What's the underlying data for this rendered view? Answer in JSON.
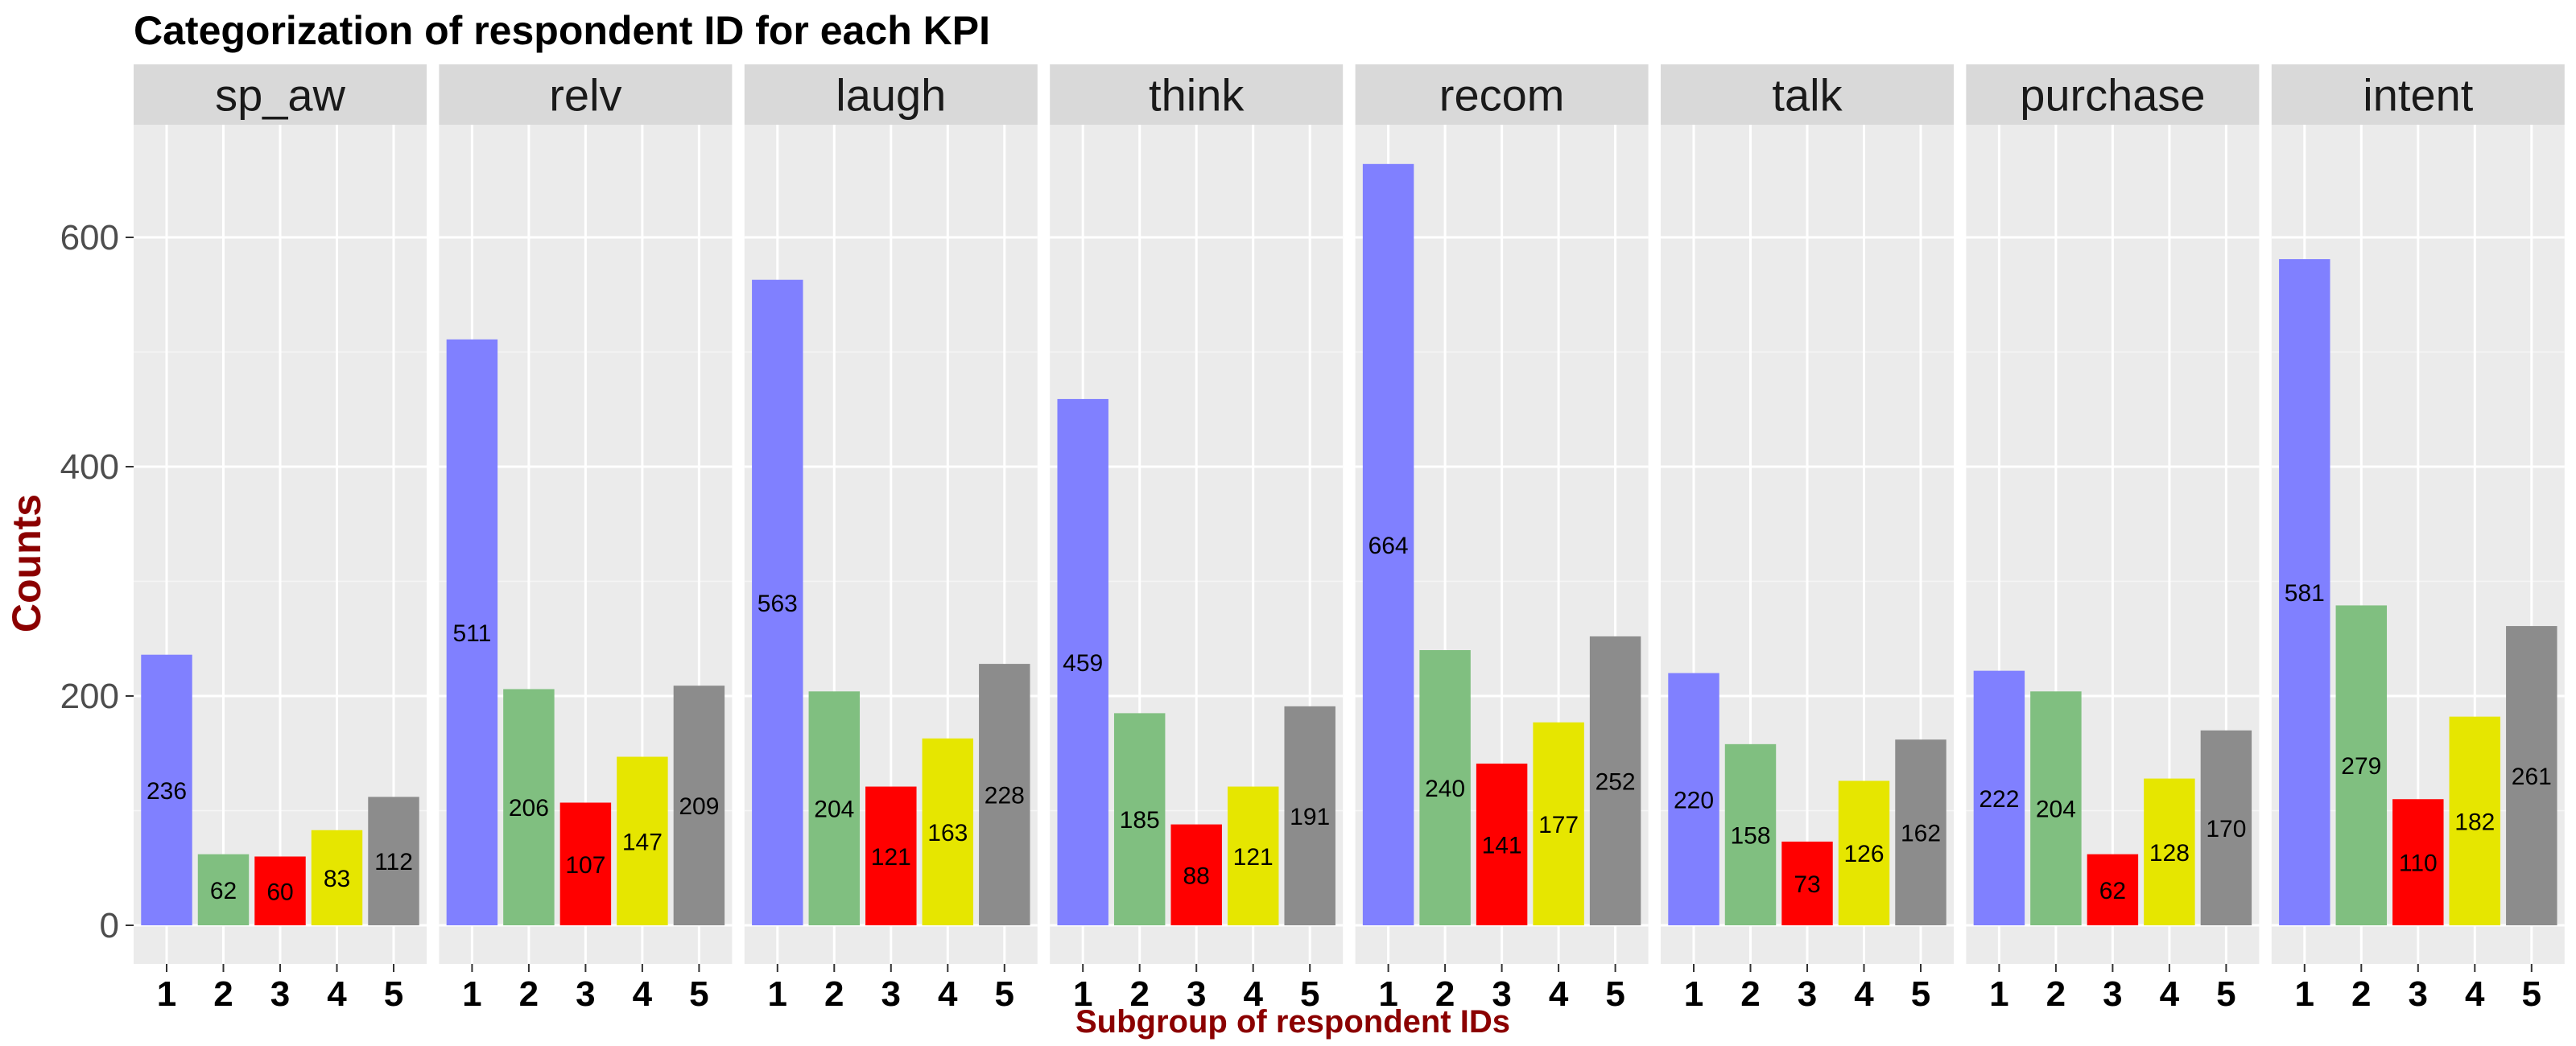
{
  "chart_data": {
    "type": "bar",
    "title": "Categorization of respondent ID for each KPI",
    "xlabel": "Subgroup of respondent IDs",
    "ylabel": "Counts",
    "categories": [
      "1",
      "2",
      "3",
      "4",
      "5"
    ],
    "category_colors": [
      "#8080ff",
      "#80bf80",
      "#ff0000",
      "#e6e600",
      "#8c8c8c"
    ],
    "ylim": [
      -30,
      700
    ],
    "yticks": [
      0,
      200,
      400,
      600
    ],
    "grid": true,
    "legend": "none",
    "facets": [
      {
        "name": "sp_aw",
        "values": [
          236,
          62,
          60,
          83,
          112
        ]
      },
      {
        "name": "relv",
        "values": [
          511,
          206,
          107,
          147,
          209
        ]
      },
      {
        "name": "laugh",
        "values": [
          563,
          204,
          121,
          163,
          228
        ]
      },
      {
        "name": "think",
        "values": [
          459,
          185,
          88,
          121,
          191
        ]
      },
      {
        "name": "recom",
        "values": [
          664,
          240,
          141,
          177,
          252
        ]
      },
      {
        "name": "talk",
        "values": [
          220,
          158,
          73,
          126,
          162
        ]
      },
      {
        "name": "purchase",
        "values": [
          222,
          204,
          62,
          128,
          170
        ]
      },
      {
        "name": "intent",
        "values": [
          581,
          279,
          110,
          182,
          261
        ]
      }
    ]
  }
}
